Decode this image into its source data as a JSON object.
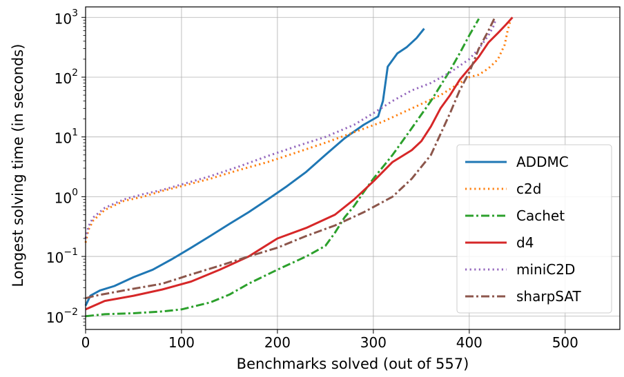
{
  "chart_data": {
    "type": "line",
    "title": "",
    "xlabel": "Benchmarks solved (out of 557)",
    "ylabel": "Longest solving time (in seconds)",
    "xlim": [
      0,
      557
    ],
    "ylim": [
      0.006,
      1500
    ],
    "yscale": "log",
    "grid": true,
    "legend_position": "bottom-right",
    "xticks": [
      {
        "value": 0,
        "label": "0"
      },
      {
        "value": 100,
        "label": "100"
      },
      {
        "value": 200,
        "label": "200"
      },
      {
        "value": 300,
        "label": "300"
      },
      {
        "value": 400,
        "label": "400"
      },
      {
        "value": 500,
        "label": "500"
      }
    ],
    "yticks": [
      {
        "value": 0.01,
        "mantissa": "10",
        "exponent": "−2"
      },
      {
        "value": 0.1,
        "mantissa": "10",
        "exponent": "−1"
      },
      {
        "value": 1,
        "mantissa": "10",
        "exponent": "0"
      },
      {
        "value": 10,
        "mantissa": "10",
        "exponent": "1"
      },
      {
        "value": 100,
        "mantissa": "10",
        "exponent": "2"
      },
      {
        "value": 1000,
        "mantissa": "10",
        "exponent": "3"
      }
    ],
    "series": [
      {
        "name": "ADDMC",
        "color": "#1f77b4",
        "dash": "solid",
        "x": [
          0,
          5,
          15,
          30,
          50,
          70,
          90,
          110,
          130,
          150,
          170,
          190,
          210,
          230,
          250,
          270,
          290,
          305,
          310,
          315,
          325,
          335,
          345,
          353
        ],
        "y": [
          0.015,
          0.022,
          0.027,
          0.032,
          0.045,
          0.06,
          0.09,
          0.14,
          0.22,
          0.35,
          0.55,
          0.9,
          1.5,
          2.6,
          5.0,
          9.5,
          16,
          22,
          40,
          150,
          250,
          320,
          450,
          650
        ]
      },
      {
        "name": "c2d",
        "color": "#ff7f0e",
        "dash": "dotted",
        "x": [
          0,
          3,
          8,
          20,
          40,
          60,
          80,
          100,
          130,
          160,
          190,
          220,
          250,
          280,
          310,
          340,
          370,
          390,
          400,
          410,
          420,
          430,
          437,
          440,
          443
        ],
        "y": [
          0.17,
          0.28,
          0.4,
          0.6,
          0.85,
          1.0,
          1.25,
          1.5,
          2.0,
          2.8,
          3.8,
          5.5,
          8.0,
          12,
          18,
          30,
          50,
          80,
          100,
          110,
          140,
          200,
          350,
          600,
          900
        ]
      },
      {
        "name": "Cachet",
        "color": "#2ca02c",
        "dash": "dashdot",
        "x": [
          0,
          20,
          50,
          80,
          100,
          130,
          150,
          170,
          200,
          230,
          250,
          260,
          270,
          280,
          290,
          300,
          320,
          340,
          360,
          380,
          390,
          400,
          410
        ],
        "y": [
          0.01,
          0.0108,
          0.0112,
          0.012,
          0.013,
          0.017,
          0.023,
          0.035,
          0.06,
          0.1,
          0.15,
          0.25,
          0.45,
          0.7,
          1.2,
          2.0,
          5.0,
          14,
          40,
          130,
          250,
          500,
          950
        ]
      },
      {
        "name": "d4",
        "color": "#d62728",
        "dash": "solid",
        "x": [
          0,
          20,
          50,
          80,
          110,
          140,
          170,
          200,
          230,
          260,
          280,
          300,
          320,
          340,
          350,
          360,
          370,
          380,
          390,
          400,
          410,
          420,
          430,
          438,
          445
        ],
        "y": [
          0.013,
          0.018,
          0.022,
          0.028,
          0.038,
          0.06,
          0.1,
          0.2,
          0.3,
          0.5,
          0.9,
          1.8,
          3.8,
          6.0,
          8.5,
          15,
          30,
          50,
          90,
          140,
          220,
          380,
          550,
          750,
          1000
        ]
      },
      {
        "name": "miniC2D",
        "color": "#9467bd",
        "dash": "dotted",
        "x": [
          0,
          3,
          8,
          20,
          40,
          60,
          80,
          100,
          130,
          160,
          190,
          220,
          250,
          280,
          300,
          320,
          340,
          360,
          380,
          400,
          410,
          420,
          425,
          428
        ],
        "y": [
          0.2,
          0.32,
          0.45,
          0.65,
          0.9,
          1.1,
          1.3,
          1.6,
          2.2,
          3.2,
          4.8,
          7.0,
          10,
          16,
          25,
          40,
          60,
          80,
          120,
          200,
          300,
          500,
          700,
          950
        ]
      },
      {
        "name": "sharpSAT",
        "color": "#8c564b",
        "dash": "dashdot",
        "x": [
          0,
          10,
          40,
          80,
          110,
          140,
          170,
          200,
          230,
          260,
          290,
          320,
          340,
          360,
          380,
          390,
          400,
          410,
          420,
          426
        ],
        "y": [
          0.02,
          0.022,
          0.027,
          0.035,
          0.05,
          0.07,
          0.1,
          0.14,
          0.22,
          0.33,
          0.55,
          1.0,
          2.0,
          5.0,
          25,
          60,
          120,
          300,
          600,
          950
        ]
      }
    ]
  }
}
